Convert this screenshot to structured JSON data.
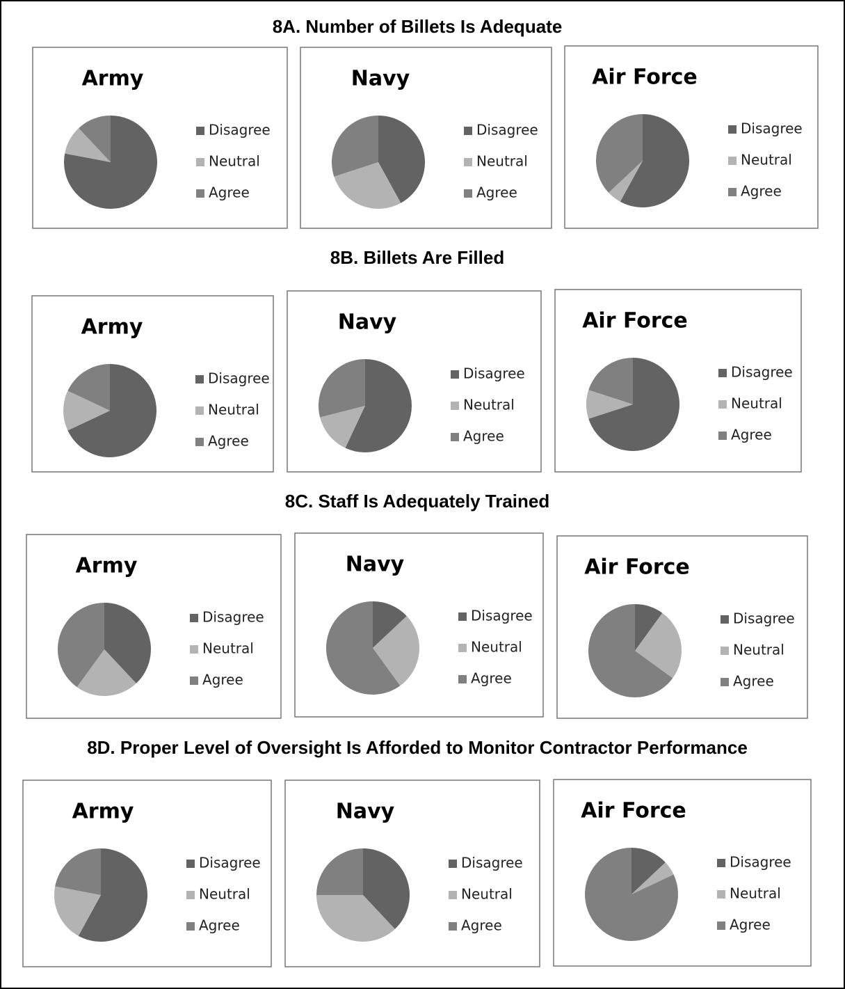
{
  "section_titles": [
    "8A. Number of Billets Is Adequate",
    "8B. Billets Are Filled",
    "8C. Staff Is Adequately Trained",
    "8D. Proper Level of Oversight Is Afforded to Monitor Contractor Performance"
  ],
  "chart_data": [
    {
      "type": "pie",
      "title": "Army",
      "categories": [
        "Disagree",
        "Neutral",
        "Agree"
      ],
      "values": [
        78,
        10,
        12
      ],
      "colors": [
        "#636363",
        "#b3b3b3",
        "#808080"
      ]
    },
    {
      "type": "pie",
      "title": "Navy",
      "categories": [
        "Disagree",
        "Neutral",
        "Agree"
      ],
      "values": [
        42,
        28,
        30
      ],
      "colors": [
        "#636363",
        "#b3b3b3",
        "#808080"
      ]
    },
    {
      "type": "pie",
      "title": "Air Force",
      "categories": [
        "Disagree",
        "Neutral",
        "Agree"
      ],
      "values": [
        58,
        5,
        37
      ],
      "colors": [
        "#636363",
        "#b3b3b3",
        "#808080"
      ]
    },
    {
      "type": "pie",
      "title": "Army",
      "categories": [
        "Disagree",
        "Neutral",
        "Agree"
      ],
      "values": [
        68,
        14,
        18
      ],
      "colors": [
        "#636363",
        "#b3b3b3",
        "#808080"
      ]
    },
    {
      "type": "pie",
      "title": "Navy",
      "categories": [
        "Disagree",
        "Neutral",
        "Agree"
      ],
      "values": [
        57,
        14,
        29
      ],
      "colors": [
        "#636363",
        "#b3b3b3",
        "#808080"
      ]
    },
    {
      "type": "pie",
      "title": "Air Force",
      "categories": [
        "Disagree",
        "Neutral",
        "Agree"
      ],
      "values": [
        70,
        10,
        20
      ],
      "colors": [
        "#636363",
        "#b3b3b3",
        "#808080"
      ]
    },
    {
      "type": "pie",
      "title": "Army",
      "categories": [
        "Disagree",
        "Neutral",
        "Agree"
      ],
      "values": [
        38,
        22,
        40
      ],
      "colors": [
        "#636363",
        "#b3b3b3",
        "#808080"
      ]
    },
    {
      "type": "pie",
      "title": "Navy",
      "categories": [
        "Disagree",
        "Neutral",
        "Agree"
      ],
      "values": [
        13,
        27,
        60
      ],
      "colors": [
        "#636363",
        "#b3b3b3",
        "#808080"
      ]
    },
    {
      "type": "pie",
      "title": "Air Force",
      "categories": [
        "Disagree",
        "Neutral",
        "Agree"
      ],
      "values": [
        10,
        25,
        65
      ],
      "colors": [
        "#636363",
        "#b3b3b3",
        "#808080"
      ]
    },
    {
      "type": "pie",
      "title": "Army",
      "categories": [
        "Disagree",
        "Neutral",
        "Agree"
      ],
      "values": [
        58,
        20,
        22
      ],
      "colors": [
        "#636363",
        "#b3b3b3",
        "#808080"
      ]
    },
    {
      "type": "pie",
      "title": "Navy",
      "categories": [
        "Disagree",
        "Neutral",
        "Agree"
      ],
      "values": [
        38,
        37,
        25
      ],
      "colors": [
        "#636363",
        "#b3b3b3",
        "#808080"
      ]
    },
    {
      "type": "pie",
      "title": "Air Force",
      "categories": [
        "Disagree",
        "Neutral",
        "Agree"
      ],
      "values": [
        13,
        5,
        82
      ],
      "colors": [
        "#636363",
        "#b3b3b3",
        "#808080"
      ]
    }
  ]
}
